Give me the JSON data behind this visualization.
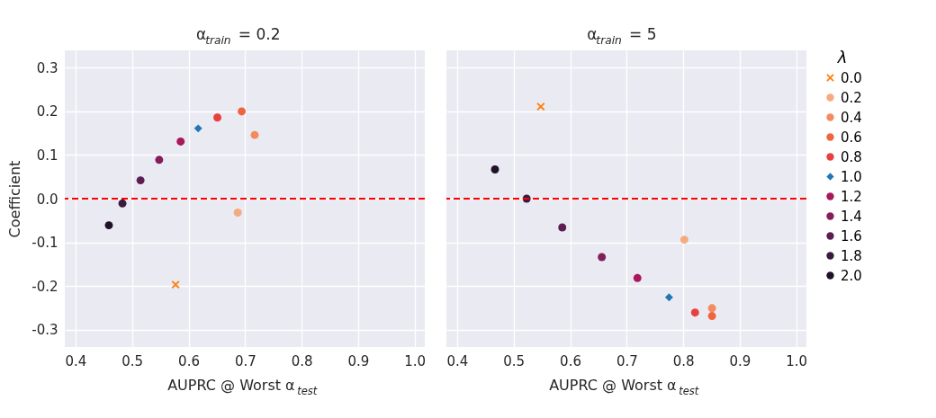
{
  "chart_data": [
    {
      "type": "scatter",
      "title": "α$_{train}$ = 0.2",
      "xlabel": "AUPRC @ Worst α$_{test}$",
      "ylabel": "Coefficient",
      "xlim": [
        0.381,
        1.018
      ],
      "ylim": [
        -0.34,
        0.34
      ],
      "xticks": [
        0.4,
        0.5,
        0.6,
        0.7,
        0.8,
        0.9,
        {
          "value": 1,
          "label": "1.0"
        }
      ],
      "yticks": [
        -0.3,
        -0.2,
        -0.1,
        {
          "value": 0,
          "label": "0.0"
        },
        0.1,
        0.2,
        0.3
      ],
      "grid": true,
      "legend": "right",
      "ref_lines": [
        {
          "axis": "y",
          "value": 0,
          "color": "#ff0000",
          "line_style": "dashed"
        }
      ],
      "series": [
        {
          "name": "0.0",
          "color": "#ff7f0e",
          "marker": "cross",
          "x": [
            0.577
          ],
          "values": [
            -0.197
          ]
        },
        {
          "name": "0.2",
          "color": "#f6aa82",
          "marker": "circle",
          "x": [
            0.687
          ],
          "values": [
            -0.032
          ]
        },
        {
          "name": "0.4",
          "color": "#f48b5f",
          "marker": "circle",
          "x": [
            0.717
          ],
          "values": [
            0.146
          ]
        },
        {
          "name": "0.6",
          "color": "#f0643f",
          "marker": "circle",
          "x": [
            0.694
          ],
          "values": [
            0.2
          ]
        },
        {
          "name": "0.8",
          "color": "#e83f3f",
          "marker": "circle",
          "x": [
            0.651
          ],
          "values": [
            0.186
          ]
        },
        {
          "name": "1.0",
          "color": "#1f77b4",
          "marker": "diamond",
          "x": [
            0.617
          ],
          "values": [
            0.161
          ]
        },
        {
          "name": "1.2",
          "color": "#a8185a",
          "marker": "circle",
          "x": [
            0.586
          ],
          "values": [
            0.131
          ]
        },
        {
          "name": "1.4",
          "color": "#841e5a",
          "marker": "circle",
          "x": [
            0.548
          ],
          "values": [
            0.089
          ]
        },
        {
          "name": "1.6",
          "color": "#5c1e51",
          "marker": "circle",
          "x": [
            0.515
          ],
          "values": [
            0.042
          ]
        },
        {
          "name": "1.8",
          "color": "#3b1a3f",
          "marker": "circle",
          "x": [
            0.483
          ],
          "values": [
            -0.011
          ]
        },
        {
          "name": "2.0",
          "color": "#1f1228",
          "marker": "circle",
          "x": [
            0.459
          ],
          "values": [
            -0.061
          ]
        }
      ]
    },
    {
      "type": "scatter",
      "title": "α$_{train}$ = 5",
      "xlabel": "AUPRC @ Worst α$_{test}$",
      "legend_title": "λ",
      "xlim": [
        0.381,
        1.018
      ],
      "ylim": [
        -0.34,
        0.34
      ],
      "xticks": [
        0.4,
        0.5,
        0.6,
        0.7,
        0.8,
        0.9,
        {
          "value": 1,
          "label": "1.0"
        }
      ],
      "yticks": [
        {
          "value": -0.3,
          "label": null
        },
        {
          "value": -0.2,
          "label": null
        },
        {
          "value": -0.1,
          "label": null
        },
        {
          "value": 0,
          "label": null
        },
        {
          "value": 0.1,
          "label": null
        },
        {
          "value": 0.2,
          "label": null
        },
        {
          "value": 0.3,
          "label": null
        }
      ],
      "tick_labels": "x",
      "grid": true,
      "legend": "right",
      "ref_lines": [
        {
          "axis": "y",
          "value": 0,
          "color": "#ff0000",
          "line_style": "dashed"
        }
      ],
      "series": [
        {
          "name": "0.0",
          "color": "#ff7f0e",
          "marker": "cross",
          "x": [
            0.548
          ],
          "values": [
            0.211
          ]
        },
        {
          "name": "0.2",
          "color": "#f6aa82",
          "marker": "circle",
          "x": [
            0.802
          ],
          "values": [
            -0.094
          ]
        },
        {
          "name": "0.4",
          "color": "#f48b5f",
          "marker": "circle",
          "x": [
            0.851
          ],
          "values": [
            -0.251
          ]
        },
        {
          "name": "0.6",
          "color": "#f0643f",
          "marker": "circle",
          "x": [
            0.851
          ],
          "values": [
            -0.269
          ]
        },
        {
          "name": "0.8",
          "color": "#e83f3f",
          "marker": "circle",
          "x": [
            0.821
          ],
          "values": [
            -0.261
          ]
        },
        {
          "name": "1.0",
          "color": "#1f77b4",
          "marker": "diamond",
          "x": [
            0.775
          ],
          "values": [
            -0.226
          ]
        },
        {
          "name": "1.2",
          "color": "#a8185a",
          "marker": "circle",
          "x": [
            0.719
          ],
          "values": [
            -0.182
          ]
        },
        {
          "name": "1.4",
          "color": "#841e5a",
          "marker": "circle",
          "x": [
            0.656
          ],
          "values": [
            -0.134
          ]
        },
        {
          "name": "1.6",
          "color": "#5c1e51",
          "marker": "circle",
          "x": [
            0.586
          ],
          "values": [
            -0.066
          ]
        },
        {
          "name": "1.8",
          "color": "#3b1a3f",
          "marker": "circle",
          "x": [
            0.523
          ],
          "values": [
            0.0
          ]
        },
        {
          "name": "2.0",
          "color": "#1f1228",
          "marker": "circle",
          "x": [
            0.467
          ],
          "values": [
            0.067
          ]
        }
      ]
    }
  ]
}
